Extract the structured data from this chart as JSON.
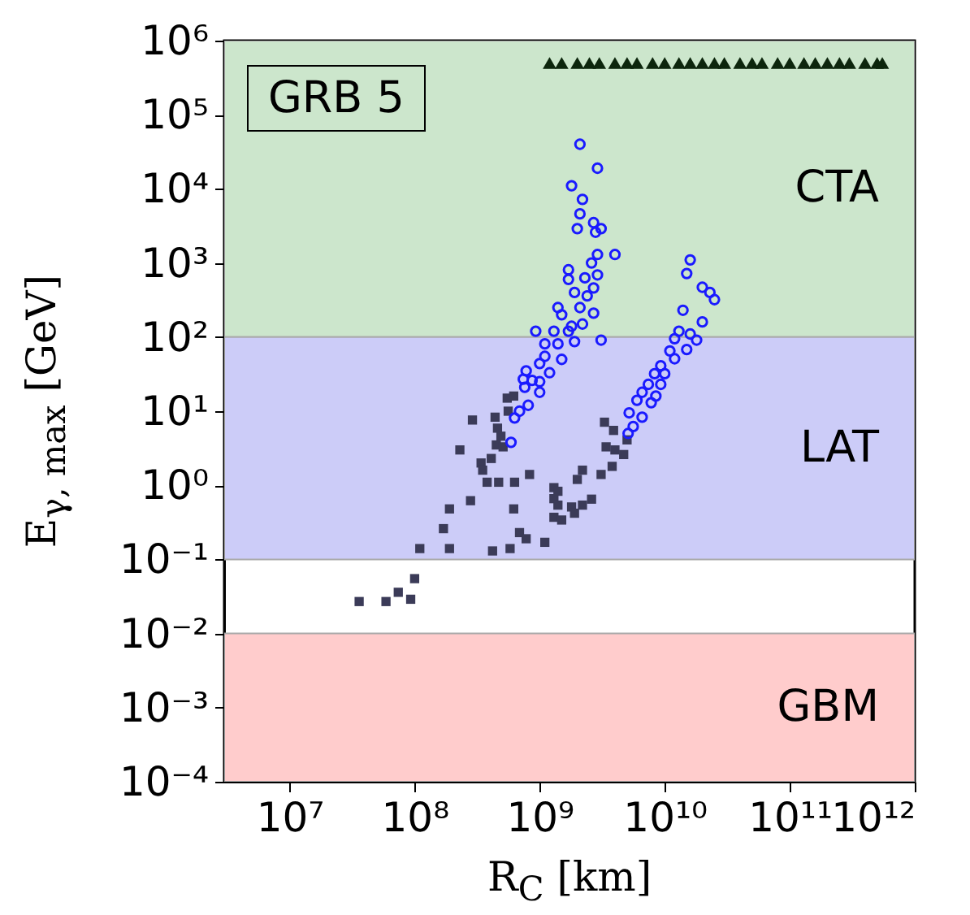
{
  "chart_data": {
    "type": "scatter",
    "xlabel": "R$_{C}$ [km]",
    "ylabel": "E$_{γ, max}$ [GeV]",
    "annotations": [
      "GRB 5"
    ],
    "log": "xy",
    "grid": false,
    "xlim": [
      3000000,
      1000000000000
    ],
    "ylim": [
      0.0001,
      1000000
    ],
    "xticks": [
      {
        "value": 10000000,
        "label": "10⁷"
      },
      {
        "value": 100000000,
        "label": "10⁸"
      },
      {
        "value": 1000000000,
        "label": "10⁹"
      },
      {
        "value": 10000000000,
        "label": "10¹⁰"
      },
      {
        "value": 100000000000,
        "label": "10¹¹"
      },
      {
        "value": 1000000000000,
        "label": "10¹²"
      }
    ],
    "yticks": [
      {
        "value": 0.0001,
        "label": "10⁻⁴"
      },
      {
        "value": 0.001,
        "label": "10⁻³"
      },
      {
        "value": 0.01,
        "label": "10⁻²"
      },
      {
        "value": 0.1,
        "label": "10⁻¹"
      },
      {
        "value": 1,
        "label": "10⁰"
      },
      {
        "value": 10,
        "label": "10¹"
      },
      {
        "value": 100,
        "label": "10²"
      },
      {
        "value": 1000,
        "label": "10³"
      },
      {
        "value": 10000,
        "label": "10⁴"
      },
      {
        "value": 100000,
        "label": "10⁵"
      },
      {
        "value": 1000000,
        "label": "10⁶"
      }
    ],
    "bands": [
      {
        "axis": "y",
        "from": 100,
        "to": 1000000,
        "label": "CTA",
        "color": "#cce6cc"
      },
      {
        "axis": "y",
        "from": 0.1,
        "to": 100,
        "label": "LAT",
        "color": "#ccccf8"
      },
      {
        "axis": "y",
        "from": 0.0001,
        "to": 0.01,
        "label": "GBM",
        "color": "#ffcccc"
      }
    ],
    "series": [
      {
        "color": "#3b3b58",
        "marker": "square",
        "x": [
          550000000,
          620000000,
          560000000,
          290000000,
          440000000,
          460000000,
          490000000,
          450000000,
          510000000,
          230000000,
          410000000,
          340000000,
          350000000,
          380000000,
          470000000,
          630000000,
          830000000,
          280000000,
          190000000,
          620000000,
          170000000,
          690000000,
          780000000,
          110000000,
          190000000,
          420000000,
          580000000,
          1100000000,
          3300000000,
          3900000000,
          3400000000,
          4000000000,
          4700000000,
          5000000000,
          3800000000,
          3100000000,
          2200000000,
          2000000000,
          1300000000,
          1400000000,
          1300000000,
          2600000000,
          2200000000,
          1800000000,
          1400000000,
          1300000000,
          1500000000,
          1900000000,
          36000000,
          59000000,
          74000000,
          93000000,
          100000000
        ],
        "values": [
          15,
          16,
          10,
          7.6,
          8.3,
          5.9,
          4.6,
          3.5,
          3.3,
          3.0,
          2.3,
          2.0,
          1.6,
          1.1,
          1.1,
          1.1,
          1.4,
          0.62,
          0.48,
          0.48,
          0.26,
          0.23,
          0.19,
          0.14,
          0.14,
          0.13,
          0.14,
          0.17,
          7.1,
          5.5,
          3.3,
          3.0,
          2.6,
          4.1,
          1.8,
          1.4,
          1.6,
          1.2,
          0.93,
          0.83,
          0.66,
          0.65,
          0.54,
          0.51,
          0.54,
          0.37,
          0.34,
          0.42,
          0.027,
          0.027,
          0.036,
          0.029,
          0.055
        ]
      },
      {
        "color": "#1a1aff",
        "marker": "circle",
        "x": [
          2100000000,
          2900000000,
          1800000000,
          2200000000,
          2100000000,
          2000000000,
          2700000000,
          3100000000,
          2800000000,
          4000000000,
          2900000000,
          2600000000,
          1700000000,
          1700000000,
          2900000000,
          2300000000,
          1900000000,
          2700000000,
          2400000000,
          1400000000,
          2100000000,
          1500000000,
          2700000000,
          2200000000,
          1800000000,
          930000000,
          1300000000,
          1700000000,
          1900000000,
          3100000000,
          1100000000,
          1400000000,
          1100000000,
          1500000000,
          780000000,
          1000000000,
          740000000,
          870000000,
          1000000000,
          1200000000,
          760000000,
          1000000000,
          810000000,
          690000000,
          630000000,
          590000000,
          16000000000,
          15000000000,
          20000000000,
          23000000000,
          25000000000,
          14000000000,
          20000000000,
          13000000000,
          16000000000,
          18000000000,
          12000000000,
          15000000000,
          11000000000,
          12000000000,
          9300000000,
          10000000000,
          8300000000,
          7400000000,
          9300000000,
          6600000000,
          8500000000,
          6000000000,
          7800000000,
          5200000000,
          6600000000,
          5600000000,
          5100000000
        ],
        "values": [
          40000,
          19000,
          11000,
          7200,
          4600,
          2900,
          3500,
          2900,
          2600,
          1300,
          1300,
          1000,
          810,
          600,
          690,
          630,
          400,
          460,
          360,
          250,
          250,
          200,
          210,
          150,
          140,
          120,
          120,
          120,
          87,
          91,
          81,
          81,
          55,
          50,
          35,
          44,
          27,
          26,
          25,
          33,
          21,
          18,
          12,
          10,
          8.1,
          3.8,
          1100,
          720,
          470,
          400,
          320,
          230,
          160,
          120,
          110,
          91,
          95,
          68,
          65,
          51,
          41,
          32,
          32,
          23,
          23,
          18,
          16,
          14,
          13,
          9.5,
          8.3,
          6.2,
          5.0
        ]
      },
      {
        "color": "#0d260d",
        "marker": "triangle",
        "x": [
          1200000000,
          1500000000,
          2000000000,
          2500000000,
          3000000000,
          4000000000,
          5000000000,
          6000000000,
          8000000000,
          10000000000,
          13000000000,
          16000000000,
          20000000000,
          25000000000,
          30000000000,
          40000000000,
          50000000000,
          60000000000,
          80000000000,
          100000000000,
          130000000000,
          160000000000,
          200000000000,
          250000000000,
          300000000000,
          400000000000,
          500000000000,
          550000000000
        ],
        "values": [
          500000,
          500000,
          500000,
          500000,
          500000,
          500000,
          500000,
          500000,
          500000,
          500000,
          500000,
          500000,
          500000,
          500000,
          500000,
          500000,
          500000,
          500000,
          500000,
          500000,
          500000,
          500000,
          500000,
          500000,
          500000,
          500000,
          500000,
          500000
        ]
      }
    ]
  }
}
